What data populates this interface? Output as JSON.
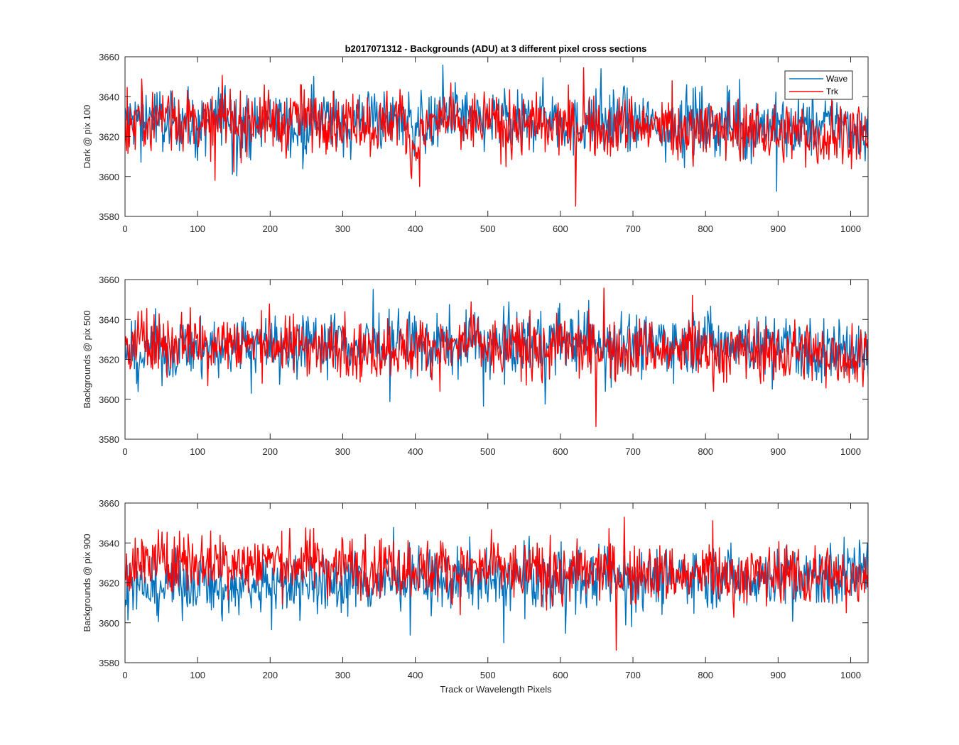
{
  "figure": {
    "title": "b2017071312 - Backgrounds (ADU) at 3 different pixel cross sections"
  },
  "legend": {
    "entries": [
      "Wave",
      "Trk"
    ],
    "placement": "top-right"
  },
  "chart_data": [
    {
      "type": "line",
      "title": "b2017071312 - Backgrounds (ADU) at 3 different pixel cross sections",
      "xlabel": "",
      "ylabel": "Dark @ pix 100",
      "xlim": [
        0,
        1024
      ],
      "ylim": [
        3580,
        3660
      ],
      "xticks": [
        0,
        100,
        200,
        300,
        400,
        500,
        600,
        700,
        800,
        900,
        1000
      ],
      "yticks": [
        3580,
        3600,
        3620,
        3640,
        3660
      ],
      "grid": false,
      "legend": "top-right",
      "series": [
        {
          "name": "Wave",
          "color": "#0072BD",
          "x": [
            0,
            20,
            40,
            60,
            80,
            100,
            120,
            140,
            160,
            180,
            200,
            220,
            240,
            260,
            280,
            300,
            320,
            340,
            360,
            380,
            400,
            420,
            440,
            460,
            480,
            500,
            520,
            540,
            560,
            580,
            600,
            620,
            640,
            660,
            680,
            700,
            720,
            740,
            760,
            780,
            800,
            820,
            840,
            860,
            880,
            900,
            920,
            940,
            960,
            980,
            1000,
            1024
          ],
          "values": [
            3627,
            3629,
            3631,
            3625,
            3630,
            3622,
            3628,
            3633,
            3626,
            3624,
            3630,
            3627,
            3623,
            3632,
            3629,
            3625,
            3628,
            3631,
            3626,
            3630,
            3627,
            3624,
            3629,
            3633,
            3626,
            3628,
            3630,
            3625,
            3627,
            3632,
            3628,
            3624,
            3629,
            3626,
            3631,
            3625,
            3628,
            3623,
            3627,
            3630,
            3626,
            3624,
            3628,
            3622,
            3627,
            3625,
            3623,
            3626,
            3624,
            3628,
            3625,
            3621
          ]
        },
        {
          "name": "Trk",
          "color": "#FF0000",
          "x": [
            0,
            20,
            40,
            60,
            80,
            100,
            120,
            140,
            160,
            180,
            200,
            220,
            240,
            260,
            280,
            300,
            320,
            340,
            360,
            380,
            400,
            420,
            440,
            460,
            480,
            500,
            520,
            540,
            560,
            580,
            600,
            620,
            640,
            660,
            680,
            700,
            720,
            740,
            760,
            780,
            800,
            820,
            840,
            860,
            880,
            900,
            920,
            940,
            960,
            980,
            1000,
            1024
          ],
          "values": [
            3622,
            3630,
            3628,
            3633,
            3627,
            3629,
            3625,
            3631,
            3626,
            3630,
            3628,
            3625,
            3632,
            3627,
            3629,
            3626,
            3630,
            3624,
            3628,
            3631,
            3612,
            3626,
            3629,
            3624,
            3627,
            3630,
            3623,
            3625,
            3628,
            3622,
            3626,
            3624,
            3627,
            3621,
            3625,
            3628,
            3623,
            3626,
            3620,
            3624,
            3627,
            3622,
            3625,
            3621,
            3624,
            3620,
            3623,
            3621,
            3619,
            3622,
            3624,
            3618
          ]
        }
      ]
    },
    {
      "type": "line",
      "title": "",
      "xlabel": "",
      "ylabel": "Backgrounds @ pix 500",
      "xlim": [
        0,
        1024
      ],
      "ylim": [
        3580,
        3660
      ],
      "xticks": [
        0,
        100,
        200,
        300,
        400,
        500,
        600,
        700,
        800,
        900,
        1000
      ],
      "yticks": [
        3580,
        3600,
        3620,
        3640,
        3660
      ],
      "grid": false,
      "series": [
        {
          "name": "Wave",
          "color": "#0072BD",
          "x": [
            0,
            20,
            40,
            60,
            80,
            100,
            120,
            140,
            160,
            180,
            200,
            220,
            240,
            260,
            280,
            300,
            320,
            340,
            360,
            380,
            400,
            420,
            440,
            460,
            480,
            500,
            520,
            540,
            560,
            580,
            600,
            620,
            640,
            660,
            680,
            700,
            720,
            740,
            760,
            780,
            800,
            820,
            840,
            860,
            880,
            900,
            920,
            940,
            960,
            980,
            1000,
            1024
          ],
          "values": [
            3625,
            3620,
            3628,
            3622,
            3626,
            3624,
            3627,
            3623,
            3629,
            3625,
            3628,
            3624,
            3626,
            3630,
            3627,
            3631,
            3625,
            3628,
            3626,
            3630,
            3627,
            3624,
            3629,
            3626,
            3631,
            3625,
            3628,
            3627,
            3630,
            3626,
            3632,
            3628,
            3631,
            3627,
            3633,
            3628,
            3626,
            3630,
            3627,
            3629,
            3632,
            3626,
            3630,
            3628,
            3625,
            3629,
            3627,
            3624,
            3621,
            3626,
            3624,
            3622
          ]
        },
        {
          "name": "Trk",
          "color": "#FF0000",
          "x": [
            0,
            20,
            40,
            60,
            80,
            100,
            120,
            140,
            160,
            180,
            200,
            220,
            240,
            260,
            280,
            300,
            320,
            340,
            360,
            380,
            400,
            420,
            440,
            460,
            480,
            500,
            520,
            540,
            560,
            580,
            600,
            620,
            640,
            660,
            680,
            700,
            720,
            740,
            760,
            780,
            800,
            820,
            840,
            860,
            880,
            900,
            920,
            940,
            960,
            980,
            1000,
            1024
          ],
          "values": [
            3624,
            3629,
            3630,
            3627,
            3631,
            3629,
            3626,
            3630,
            3628,
            3627,
            3630,
            3625,
            3629,
            3627,
            3624,
            3628,
            3626,
            3623,
            3627,
            3625,
            3626,
            3628,
            3624,
            3627,
            3629,
            3626,
            3624,
            3627,
            3625,
            3623,
            3628,
            3626,
            3624,
            3627,
            3622,
            3625,
            3627,
            3624,
            3623,
            3626,
            3625,
            3622,
            3624,
            3626,
            3623,
            3621,
            3625,
            3624,
            3622,
            3623,
            3620,
            3624
          ]
        }
      ]
    },
    {
      "type": "line",
      "title": "",
      "xlabel": "Track or Wavelength Pixels",
      "ylabel": "Backgrounds @ pix 900",
      "xlim": [
        0,
        1024
      ],
      "ylim": [
        3580,
        3660
      ],
      "xticks": [
        0,
        100,
        200,
        300,
        400,
        500,
        600,
        700,
        800,
        900,
        1000
      ],
      "yticks": [
        3580,
        3600,
        3620,
        3640,
        3660
      ],
      "grid": false,
      "series": [
        {
          "name": "Wave",
          "color": "#0072BD",
          "x": [
            0,
            20,
            40,
            60,
            80,
            100,
            120,
            140,
            160,
            180,
            200,
            220,
            240,
            260,
            280,
            300,
            320,
            340,
            360,
            380,
            400,
            420,
            440,
            460,
            480,
            500,
            520,
            540,
            560,
            580,
            600,
            620,
            640,
            660,
            680,
            700,
            720,
            740,
            760,
            780,
            800,
            820,
            840,
            860,
            880,
            900,
            920,
            940,
            960,
            980,
            1000,
            1024
          ],
          "values": [
            3622,
            3618,
            3616,
            3620,
            3619,
            3621,
            3617,
            3615,
            3619,
            3618,
            3620,
            3617,
            3619,
            3621,
            3618,
            3620,
            3622,
            3619,
            3621,
            3620,
            3623,
            3621,
            3619,
            3622,
            3624,
            3621,
            3620,
            3623,
            3622,
            3620,
            3624,
            3622,
            3621,
            3625,
            3623,
            3622,
            3624,
            3621,
            3623,
            3625,
            3622,
            3624,
            3623,
            3621,
            3624,
            3622,
            3623,
            3621,
            3624,
            3622,
            3626,
            3628
          ]
        },
        {
          "name": "Trk",
          "color": "#FF0000",
          "x": [
            0,
            20,
            40,
            60,
            80,
            100,
            120,
            140,
            160,
            180,
            200,
            220,
            240,
            260,
            280,
            300,
            320,
            340,
            360,
            380,
            400,
            420,
            440,
            460,
            480,
            500,
            520,
            540,
            560,
            580,
            600,
            620,
            640,
            660,
            680,
            700,
            720,
            740,
            760,
            780,
            800,
            820,
            840,
            860,
            880,
            900,
            920,
            940,
            960,
            980,
            1000,
            1024
          ],
          "values": [
            3626,
            3630,
            3632,
            3629,
            3633,
            3631,
            3630,
            3632,
            3628,
            3631,
            3632,
            3629,
            3630,
            3632,
            3628,
            3631,
            3627,
            3629,
            3630,
            3627,
            3628,
            3626,
            3629,
            3625,
            3627,
            3626,
            3628,
            3624,
            3627,
            3625,
            3623,
            3626,
            3624,
            3627,
            3625,
            3623,
            3626,
            3624,
            3625,
            3622,
            3626,
            3624,
            3622,
            3625,
            3623,
            3626,
            3624,
            3622,
            3625,
            3623,
            3621,
            3627
          ]
        }
      ]
    }
  ]
}
